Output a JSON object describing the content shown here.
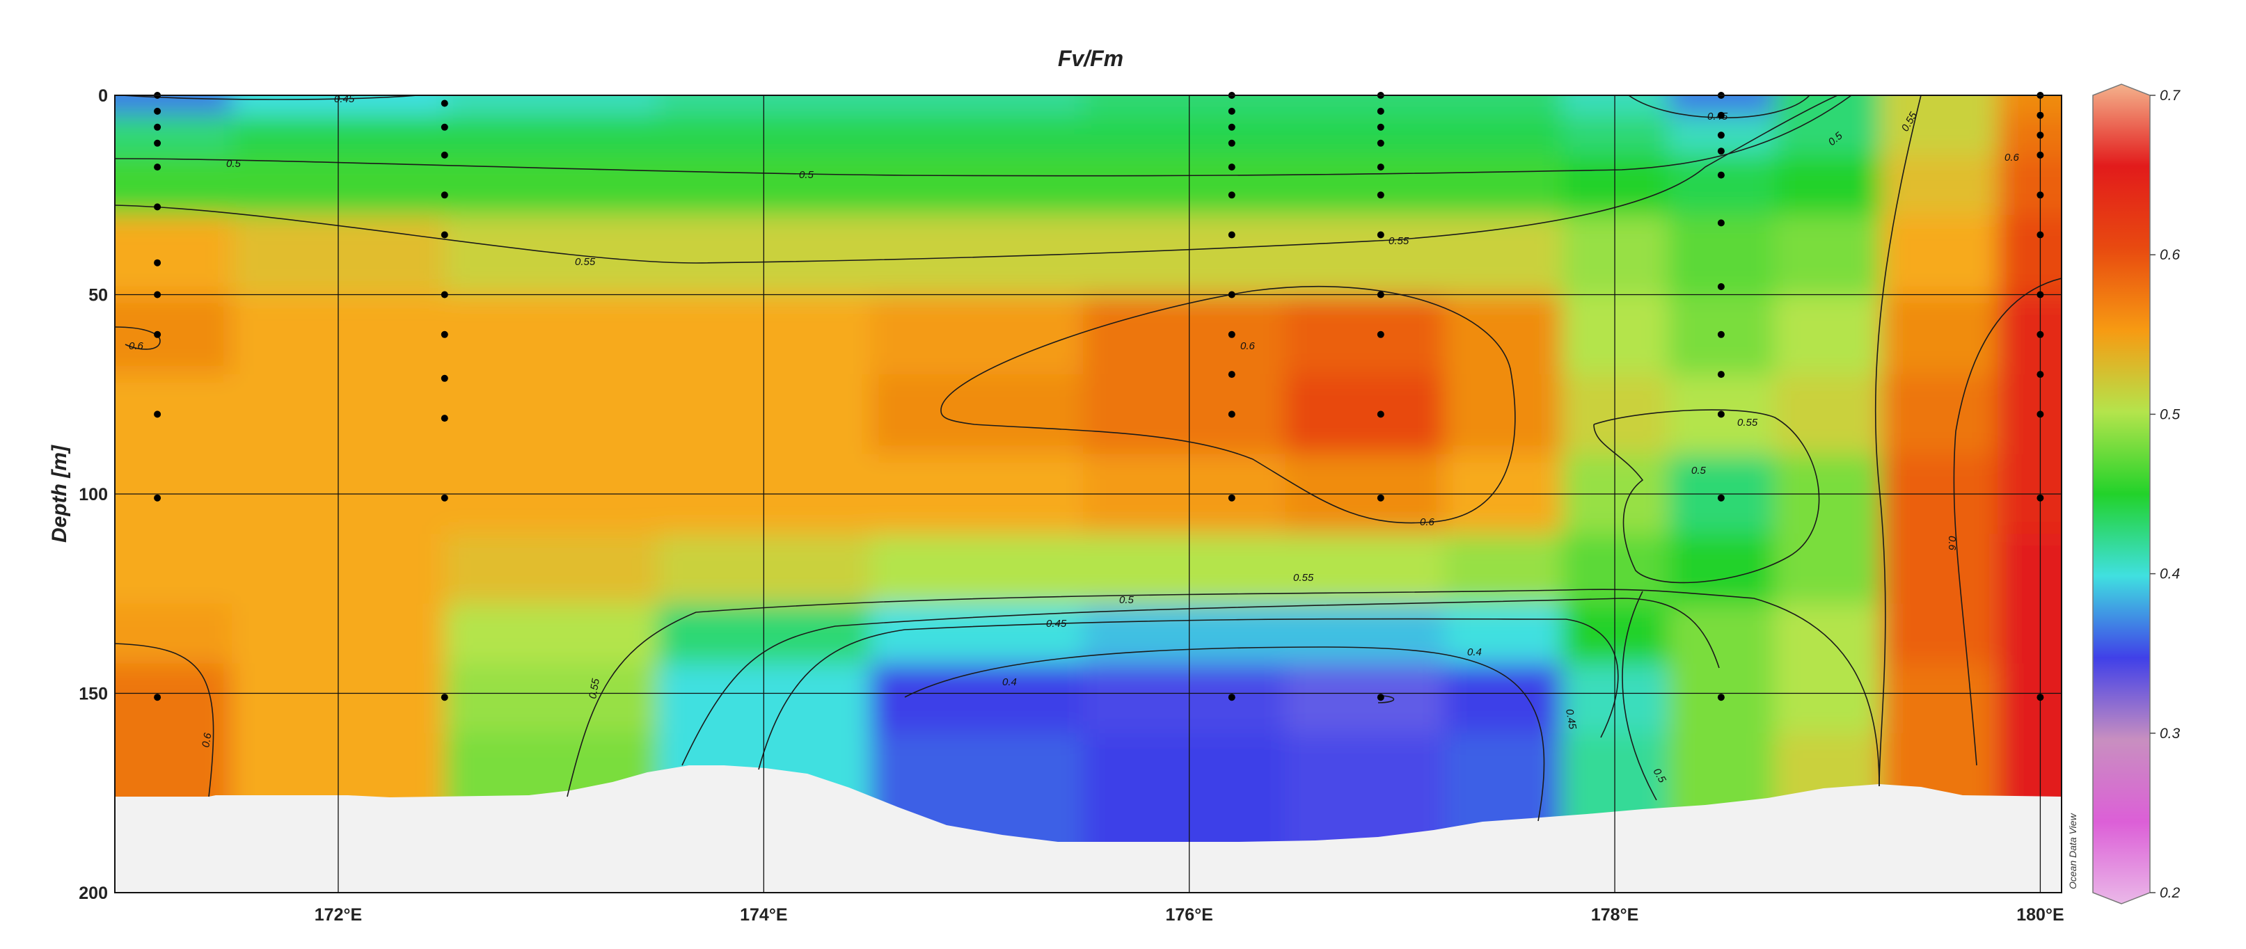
{
  "chart_data": {
    "type": "heatmap",
    "title": "Fv/Fm",
    "ylabel": "Depth [m]",
    "xlabel": "",
    "xlim": [
      170.95,
      180.1
    ],
    "ylim": [
      0,
      200
    ],
    "y_inverted": true,
    "x_ticks": [
      172,
      174,
      176,
      178,
      180
    ],
    "x_tick_labels": [
      "172°E",
      "174°E",
      "176°E",
      "178°E",
      "180°E"
    ],
    "y_ticks": [
      0,
      50,
      100,
      150,
      200
    ],
    "y_tick_labels": [
      "0",
      "50",
      "100",
      "150",
      "200"
    ],
    "grid": true,
    "colorbar": {
      "range": [
        0.2,
        0.7
      ],
      "ticks": [
        0.2,
        0.3,
        0.4,
        0.5,
        0.6,
        0.7
      ],
      "tick_labels": [
        "0.2",
        "0.3",
        "0.4",
        "0.5",
        "0.6",
        "0.7"
      ]
    },
    "stations": [
      {
        "lon": 171.15,
        "depths": [
          0,
          4,
          8,
          12,
          18,
          28,
          42,
          50,
          60,
          80,
          101,
          151
        ]
      },
      {
        "lon": 172.5,
        "depths": [
          2,
          8,
          15,
          25,
          35,
          50,
          60,
          71,
          81,
          101,
          151
        ]
      },
      {
        "lon": 176.2,
        "depths": [
          0,
          4,
          8,
          12,
          18,
          25,
          35,
          50,
          60,
          70,
          80,
          101,
          151
        ]
      },
      {
        "lon": 176.9,
        "depths": [
          0,
          4,
          8,
          12,
          18,
          25,
          35,
          50,
          60,
          80,
          101,
          151
        ]
      },
      {
        "lon": 178.5,
        "depths": [
          0,
          5,
          10,
          14,
          20,
          32,
          48,
          60,
          70,
          80,
          101,
          151
        ]
      },
      {
        "lon": 180.0,
        "depths": [
          0,
          5,
          10,
          15,
          25,
          35,
          50,
          60,
          70,
          80,
          101,
          151
        ]
      }
    ],
    "sample_grid": {
      "lons": [
        171.0,
        172.0,
        173.0,
        174.0,
        175.0,
        176.0,
        176.9,
        177.5,
        178.0,
        178.5,
        179.0,
        179.5,
        180.1
      ],
      "depths": [
        0,
        10,
        20,
        40,
        60,
        80,
        100,
        120,
        135,
        150,
        170
      ],
      "values": [
        [
          0.42,
          0.45,
          0.46,
          0.47,
          0.47,
          0.48,
          0.48,
          0.48,
          0.46,
          0.42,
          0.48,
          0.56,
          0.6
        ],
        [
          0.48,
          0.49,
          0.49,
          0.49,
          0.49,
          0.49,
          0.49,
          0.49,
          0.48,
          0.46,
          0.48,
          0.56,
          0.61
        ],
        [
          0.51,
          0.51,
          0.51,
          0.51,
          0.51,
          0.51,
          0.51,
          0.51,
          0.5,
          0.49,
          0.5,
          0.57,
          0.62
        ],
        [
          0.58,
          0.57,
          0.56,
          0.56,
          0.56,
          0.56,
          0.56,
          0.56,
          0.54,
          0.52,
          0.53,
          0.58,
          0.63
        ],
        [
          0.6,
          0.58,
          0.58,
          0.58,
          0.59,
          0.61,
          0.62,
          0.6,
          0.55,
          0.53,
          0.55,
          0.6,
          0.65
        ],
        [
          0.58,
          0.58,
          0.58,
          0.58,
          0.6,
          0.61,
          0.63,
          0.6,
          0.56,
          0.55,
          0.56,
          0.61,
          0.65
        ],
        [
          0.58,
          0.58,
          0.58,
          0.58,
          0.58,
          0.59,
          0.6,
          0.58,
          0.54,
          0.48,
          0.53,
          0.62,
          0.65
        ],
        [
          0.58,
          0.58,
          0.57,
          0.56,
          0.55,
          0.55,
          0.55,
          0.54,
          0.52,
          0.5,
          0.53,
          0.62,
          0.66
        ],
        [
          0.59,
          0.58,
          0.55,
          0.48,
          0.45,
          0.44,
          0.44,
          0.45,
          0.5,
          0.53,
          0.55,
          0.62,
          0.66
        ],
        [
          0.61,
          0.58,
          0.54,
          0.45,
          0.4,
          0.39,
          0.37,
          0.4,
          0.46,
          0.53,
          0.55,
          0.61,
          0.66
        ],
        [
          0.61,
          0.58,
          0.53,
          0.45,
          0.41,
          0.4,
          0.39,
          0.41,
          0.47,
          0.53,
          0.56,
          0.61,
          0.66
        ]
      ]
    },
    "contours": [
      {
        "label": "0.45",
        "positions": [
          "near surface 171.8°E",
          "near surface 178.5°E",
          "lower 175.3°E",
          "lower 177.9°E"
        ]
      },
      {
        "label": "0.5",
        "positions": [
          "upper layer 171.7°E",
          "upper layer 174.2°E",
          "178.6°E",
          "lower 175.8°E",
          "lower 178.2°E"
        ]
      },
      {
        "label": "0.55",
        "positions": [
          "173.0°E",
          "176.5°E",
          "177.8°E",
          "178.7°E",
          "179.3°E",
          "lower 173.2°E"
        ]
      },
      {
        "label": "0.6",
        "positions": [
          "171.05°E",
          "176.3°E",
          "177.2°E",
          "179.8°E",
          "180.0°E",
          "lower 171.4°E"
        ]
      },
      {
        "label": "0.4",
        "positions": [
          "175.2°E",
          "177.4°E"
        ]
      }
    ],
    "credit": "Ocean Data View"
  }
}
